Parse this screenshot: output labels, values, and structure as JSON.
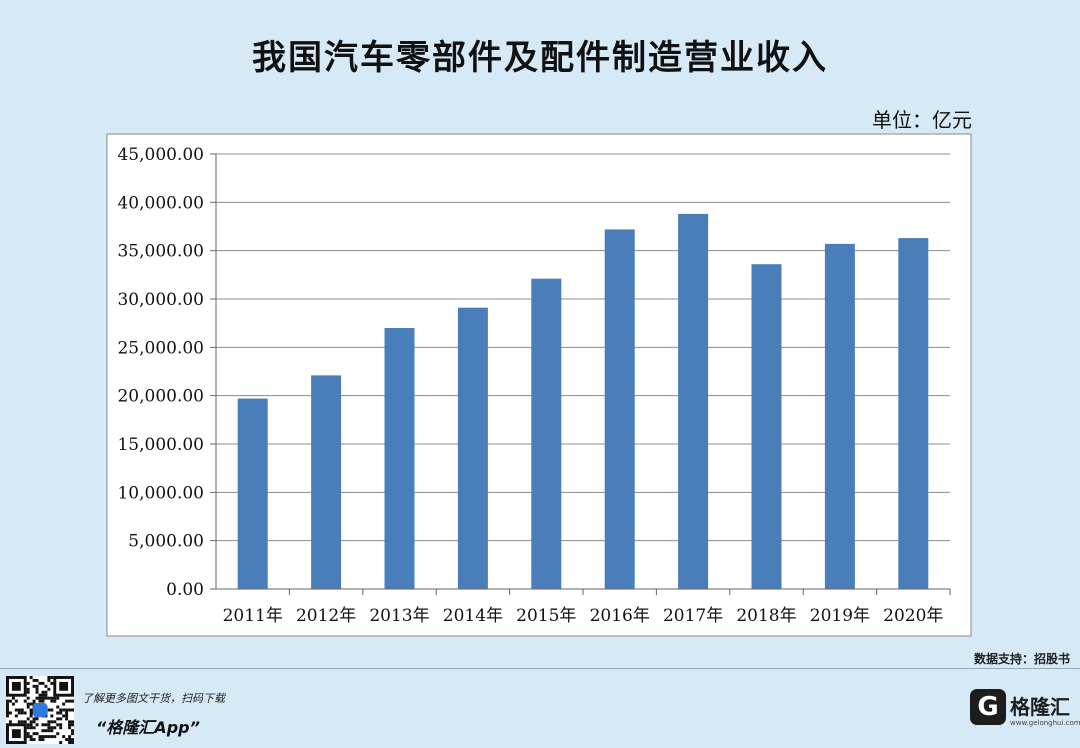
{
  "page": {
    "title": "我国汽车零部件及配件制造营业收入",
    "unit_label": "单位：亿元",
    "source": "数据支持：招股书",
    "promo_text": "了解更多图文干货，扫码下载",
    "app_name": "“格隆汇App”",
    "brand": "格隆汇"
  },
  "chart_data": {
    "type": "bar",
    "title": "我国汽车零部件及配件制造营业收入",
    "ylabel": "单位：亿元",
    "categories": [
      "2011年",
      "2012年",
      "2013年",
      "2014年",
      "2015年",
      "2016年",
      "2017年",
      "2018年",
      "2019年",
      "2020年"
    ],
    "values": [
      19700,
      22100,
      27000,
      29100,
      32100,
      37200,
      38800,
      33600,
      35700,
      36300
    ],
    "ylim": [
      0,
      45000
    ],
    "yticks": [
      "0.00",
      "5,000.00",
      "10,000.00",
      "15,000.00",
      "20,000.00",
      "25,000.00",
      "30,000.00",
      "35,000.00",
      "40,000.00",
      "45,000.00"
    ],
    "bar_color": "#4a7ebb",
    "grid": true,
    "legend": "none"
  }
}
